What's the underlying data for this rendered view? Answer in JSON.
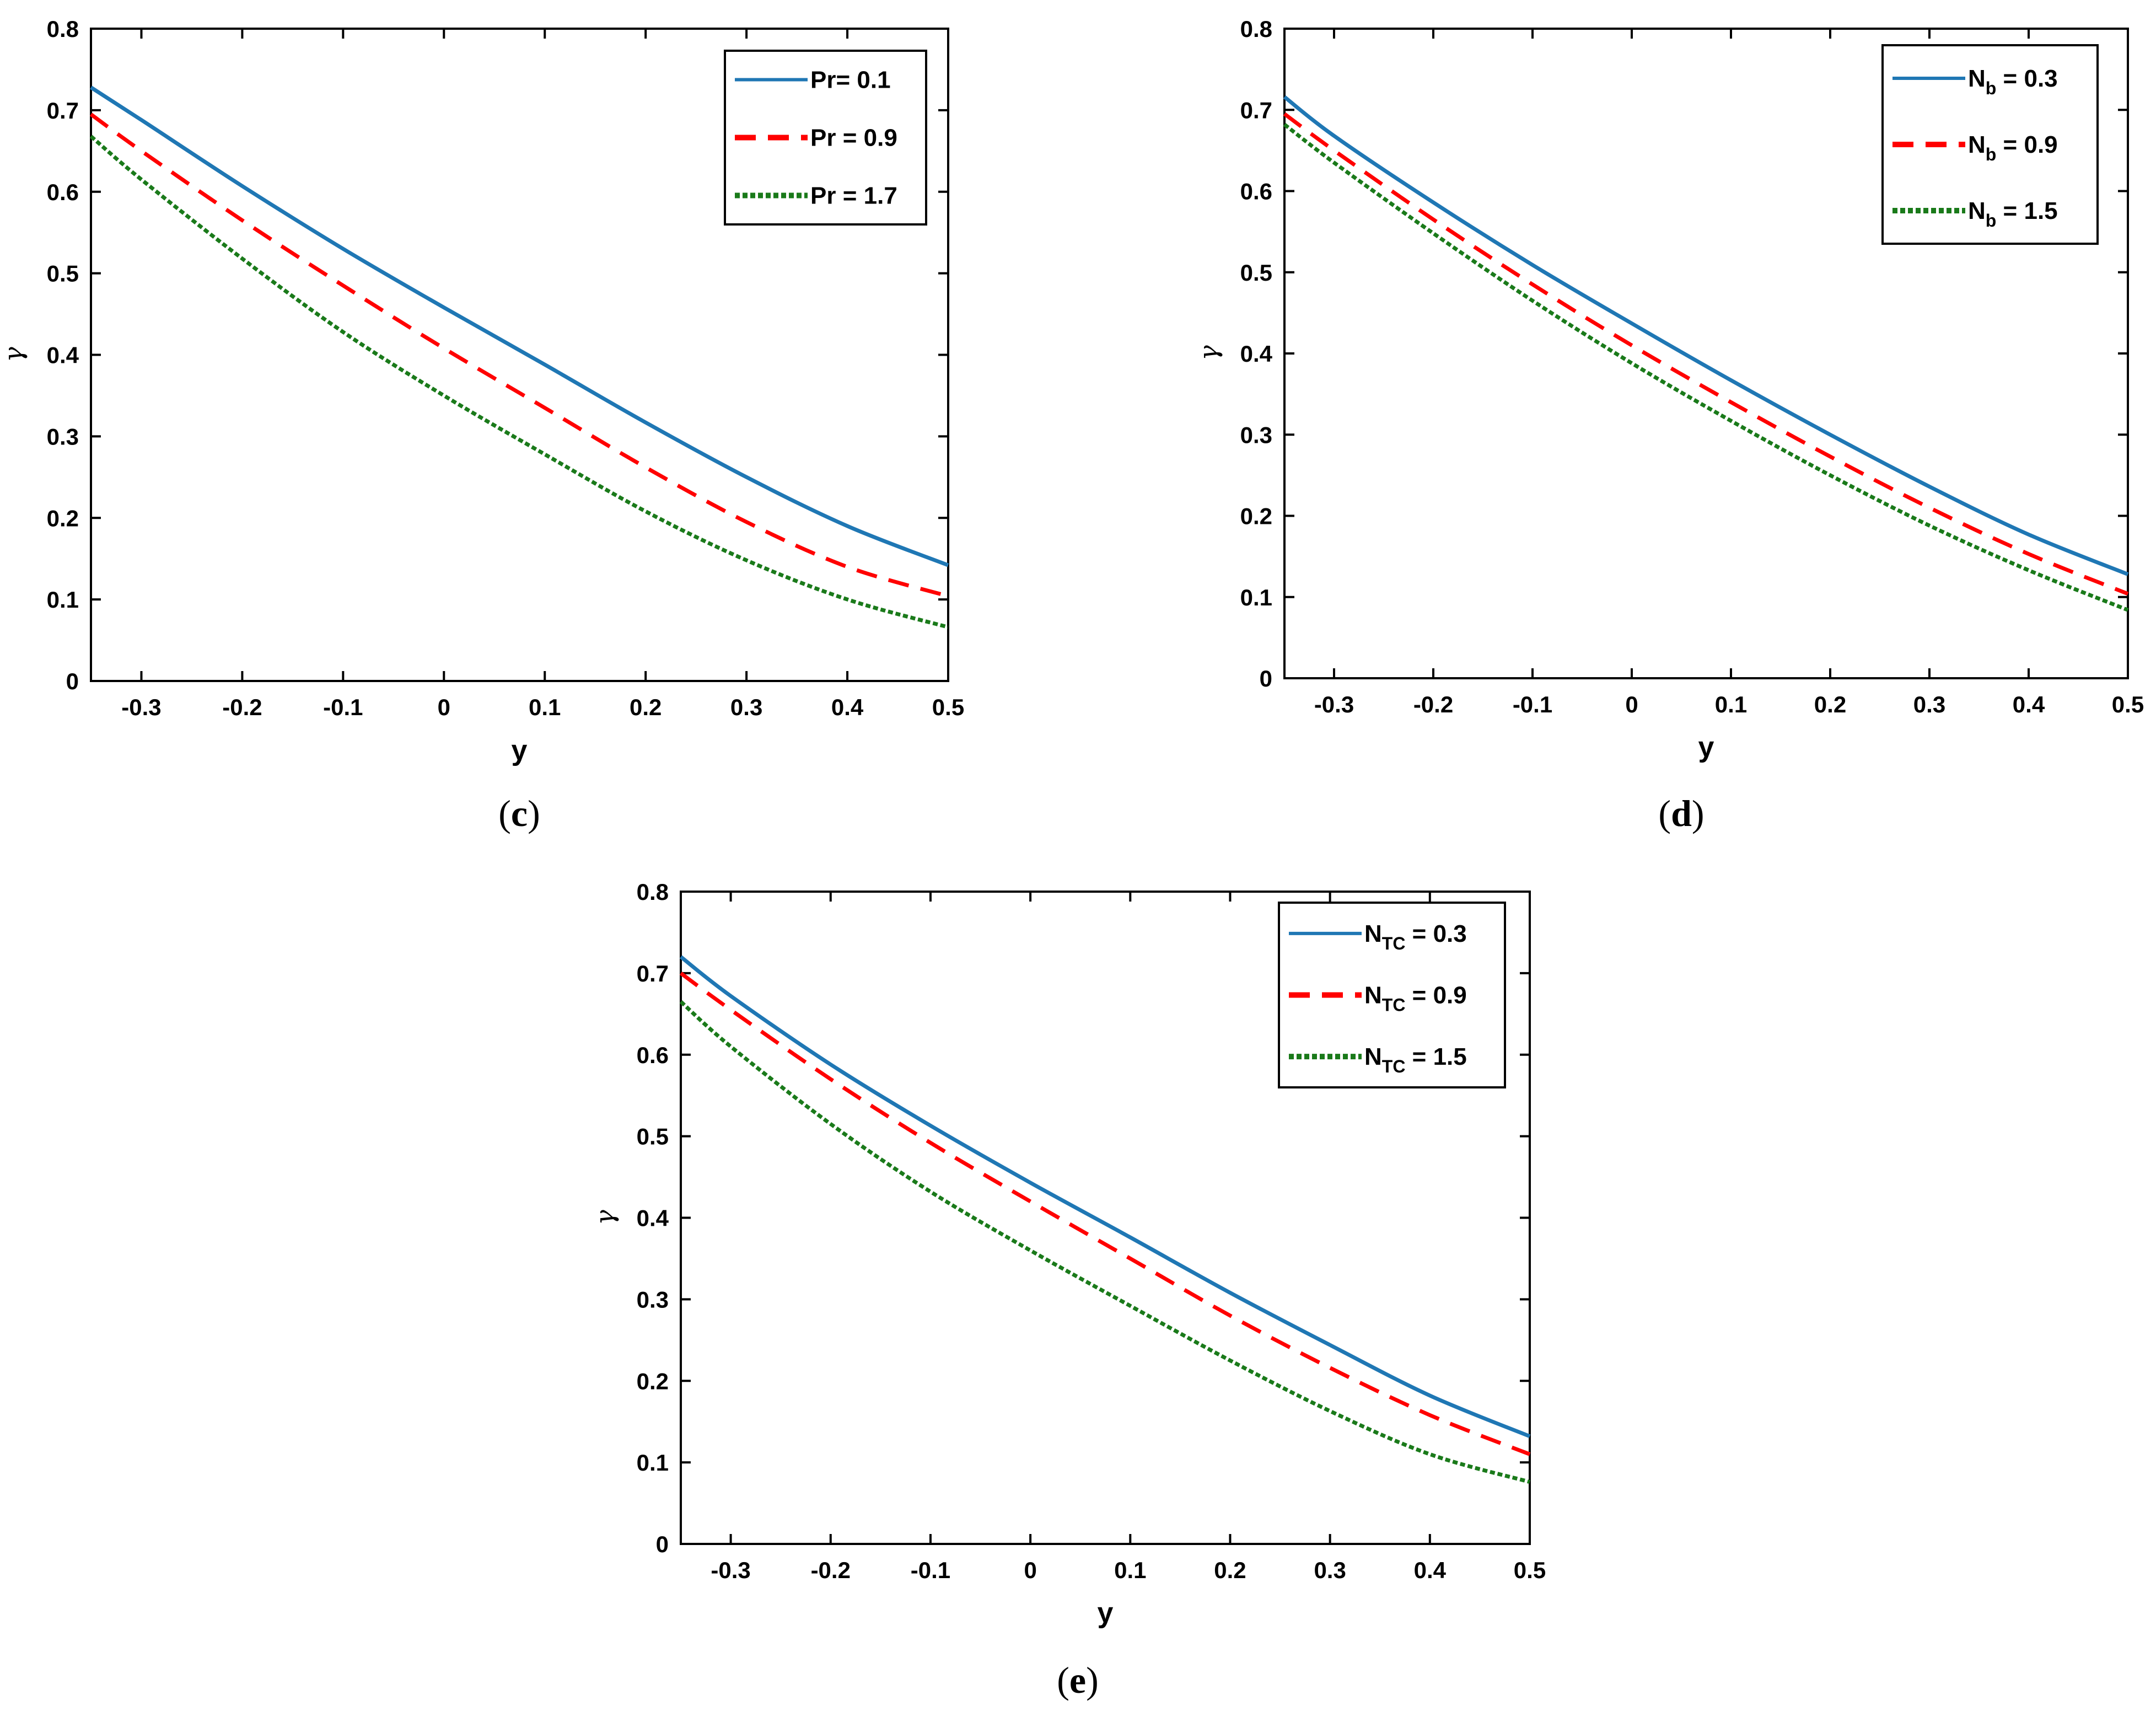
{
  "figure": {
    "panels": [
      "c",
      "d",
      "e"
    ]
  },
  "colors": {
    "solid": "#1f77b4",
    "dashed": "#ff0000",
    "dotted": "#1a7a1a"
  },
  "chart_data": [
    {
      "id": "c",
      "type": "line",
      "panel_label": "c",
      "xlabel": "y",
      "ylabel": "γ",
      "xlim": [
        -0.35,
        0.5
      ],
      "ylim": [
        0,
        0.8
      ],
      "xticks": [
        -0.3,
        -0.2,
        -0.1,
        0,
        0.1,
        0.2,
        0.3,
        0.4,
        0.5
      ],
      "xtick_labels": [
        "-0.3",
        "-0.2",
        "-0.1",
        "0",
        "0.1",
        "0.2",
        "0.3",
        "0.4",
        "0.5"
      ],
      "yticks": [
        0,
        0.1,
        0.2,
        0.3,
        0.4,
        0.5,
        0.6,
        0.7,
        0.8
      ],
      "ytick_labels": [
        "0",
        "0.1",
        "0.2",
        "0.3",
        "0.4",
        "0.5",
        "0.6",
        "0.7",
        "0.8"
      ],
      "legend_position": "top-right",
      "x": [
        -0.35,
        -0.3,
        -0.2,
        -0.1,
        0,
        0.1,
        0.2,
        0.3,
        0.4,
        0.5
      ],
      "series": [
        {
          "name_main": "Pr",
          "name_sub": "",
          "name_value": "= 0.1",
          "style": "solid",
          "values": [
            0.728,
            0.688,
            0.607,
            0.53,
            0.458,
            0.388,
            0.317,
            0.25,
            0.19,
            0.142
          ]
        },
        {
          "name_main": "Pr",
          "name_sub": "",
          "name_value": " = 0.9",
          "style": "dashed",
          "values": [
            0.695,
            0.65,
            0.565,
            0.485,
            0.408,
            0.335,
            0.262,
            0.195,
            0.14,
            0.104
          ]
        },
        {
          "name_main": "Pr",
          "name_sub": "",
          "name_value": " = 1.7",
          "style": "dotted",
          "values": [
            0.668,
            0.615,
            0.518,
            0.428,
            0.35,
            0.278,
            0.208,
            0.148,
            0.1,
            0.066
          ]
        }
      ]
    },
    {
      "id": "d",
      "type": "line",
      "panel_label": "d",
      "xlabel": "y",
      "ylabel": "γ",
      "xlim": [
        -0.35,
        0.5
      ],
      "ylim": [
        0,
        0.8
      ],
      "xticks": [
        -0.3,
        -0.2,
        -0.1,
        0,
        0.1,
        0.2,
        0.3,
        0.4,
        0.5
      ],
      "xtick_labels": [
        "-0.3",
        "-0.2",
        "-0.1",
        "0",
        "0.1",
        "0.2",
        "0.3",
        "0.4",
        "0.5"
      ],
      "yticks": [
        0,
        0.1,
        0.2,
        0.3,
        0.4,
        0.5,
        0.6,
        0.7,
        0.8
      ],
      "ytick_labels": [
        "0",
        "0.1",
        "0.2",
        "0.3",
        "0.4",
        "0.5",
        "0.6",
        "0.7",
        "0.8"
      ],
      "legend_position": "top-right",
      "x": [
        -0.35,
        -0.3,
        -0.2,
        -0.1,
        0,
        0.1,
        0.2,
        0.3,
        0.4,
        0.5
      ],
      "series": [
        {
          "name_main": "N",
          "name_sub": "b",
          "name_value": " = 0.3",
          "style": "solid",
          "values": [
            0.716,
            0.668,
            0.586,
            0.509,
            0.437,
            0.367,
            0.3,
            0.236,
            0.177,
            0.128
          ]
        },
        {
          "name_main": "N",
          "name_sub": "b",
          "name_value": " = 0.9",
          "style": "dashed",
          "values": [
            0.695,
            0.65,
            0.565,
            0.485,
            0.41,
            0.34,
            0.273,
            0.21,
            0.153,
            0.104
          ]
        },
        {
          "name_main": "N",
          "name_sub": "b",
          "name_value": "   = 1.5",
          "style": "dotted",
          "values": [
            0.682,
            0.635,
            0.548,
            0.465,
            0.388,
            0.317,
            0.25,
            0.188,
            0.133,
            0.084
          ]
        }
      ]
    },
    {
      "id": "e",
      "type": "line",
      "panel_label": "e",
      "xlabel": "y",
      "ylabel": "γ",
      "xlim": [
        -0.35,
        0.5
      ],
      "ylim": [
        0,
        0.8
      ],
      "xticks": [
        -0.3,
        -0.2,
        -0.1,
        0,
        0.1,
        0.2,
        0.3,
        0.4,
        0.5
      ],
      "xtick_labels": [
        "-0.3",
        "-0.2",
        "-0.1",
        "0",
        "0.1",
        "0.2",
        "0.3",
        "0.4",
        "0.5"
      ],
      "yticks": [
        0,
        0.1,
        0.2,
        0.3,
        0.4,
        0.5,
        0.6,
        0.7,
        0.8
      ],
      "ytick_labels": [
        "0",
        "0.1",
        "0.2",
        "0.3",
        "0.4",
        "0.5",
        "0.6",
        "0.7",
        "0.8"
      ],
      "legend_position": "top-right",
      "x": [
        -0.35,
        -0.3,
        -0.2,
        -0.1,
        0,
        0.1,
        0.2,
        0.3,
        0.4,
        0.5
      ],
      "series": [
        {
          "name_main": "N",
          "name_sub": "TC",
          "name_value": " = 0.3",
          "style": "solid",
          "values": [
            0.72,
            0.672,
            0.588,
            0.513,
            0.443,
            0.376,
            0.308,
            0.244,
            0.182,
            0.132
          ]
        },
        {
          "name_main": "N",
          "name_sub": "TC",
          "name_value": "  = 0.9",
          "style": "dashed",
          "values": [
            0.7,
            0.655,
            0.57,
            0.492,
            0.42,
            0.35,
            0.28,
            0.216,
            0.158,
            0.11
          ]
        },
        {
          "name_main": "N",
          "name_sub": "TC",
          "name_value": "   = 1.5",
          "style": "dotted",
          "values": [
            0.665,
            0.61,
            0.515,
            0.432,
            0.36,
            0.292,
            0.225,
            0.163,
            0.11,
            0.076
          ]
        }
      ]
    }
  ]
}
